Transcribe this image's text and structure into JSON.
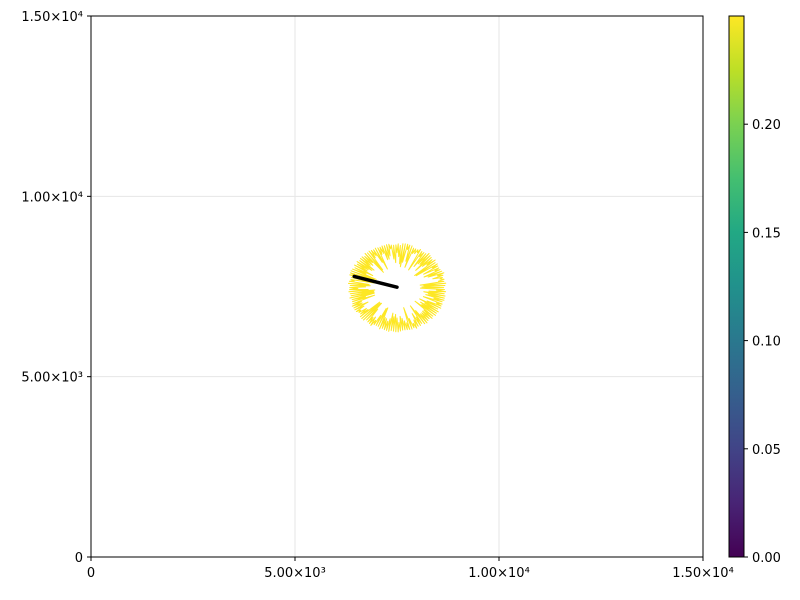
{
  "chart_data": {
    "type": "line",
    "title": "",
    "xlabel": "",
    "ylabel": "",
    "xlim": [
      0,
      15000
    ],
    "ylim": [
      0,
      15000
    ],
    "grid": true,
    "x_ticks": [
      {
        "value": 0,
        "label": "0"
      },
      {
        "value": 5000,
        "label": "5.00×10³"
      },
      {
        "value": 10000,
        "label": "1.00×10⁴"
      },
      {
        "value": 15000,
        "label": "1.50×10⁴"
      }
    ],
    "y_ticks": [
      {
        "value": 0,
        "label": "0"
      },
      {
        "value": 5000,
        "label": "5.00×10³"
      },
      {
        "value": 10000,
        "label": "1.00×10⁴"
      },
      {
        "value": 15000,
        "label": "1.50×10⁴"
      }
    ],
    "ring": {
      "center": [
        7500,
        7470
      ],
      "radius_x": 1180,
      "radius_y": 1200,
      "spike_depth_max": 650,
      "spike_count": 130,
      "color_value": 0.24,
      "color": "#fde725"
    },
    "trajectory": {
      "points": [
        [
          6450,
          7780
        ],
        [
          6900,
          7650
        ],
        [
          7500,
          7480
        ]
      ],
      "color": "#000000"
    },
    "colorbar": {
      "range": [
        0,
        0.25
      ],
      "colormap": "viridis",
      "ticks": [
        {
          "value": 0.0,
          "label": "0.00"
        },
        {
          "value": 0.05,
          "label": "0.05"
        },
        {
          "value": 0.1,
          "label": "0.10"
        },
        {
          "value": 0.15,
          "label": "0.15"
        },
        {
          "value": 0.2,
          "label": "0.20"
        }
      ]
    }
  }
}
